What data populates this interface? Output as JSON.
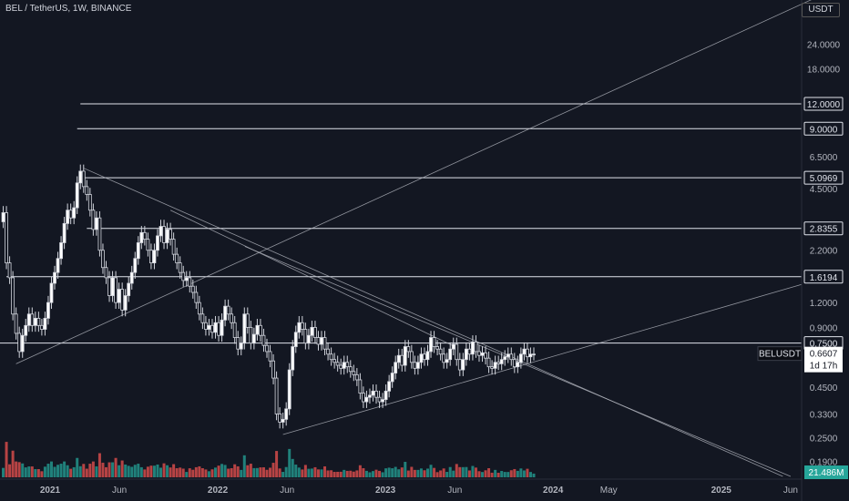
{
  "header": {
    "symbol_line": "BEL / TetherUS, 1W, BINANCE",
    "unit": "USDT"
  },
  "colors": {
    "up": "#ffffff",
    "down": "#d1d4dc",
    "vol_up": "#26a69a",
    "vol_down": "#ef5350",
    "bg": "#131722",
    "last": "#ffffff"
  },
  "chart_data": {
    "type": "candlestick",
    "y_scale": "log",
    "ylim": [
      0.155,
      40
    ],
    "xlim": [
      "2020-09-14",
      "2025-06-25"
    ],
    "y_ticks": [
      "24.0000",
      "18.0000",
      "12.0000",
      "9.0000",
      "6.5000",
      "4.5000",
      "2.2000",
      "1.2000",
      "0.9000",
      "0.4500",
      "0.3300",
      "0.2500",
      "0.1900"
    ],
    "x_ticks": [
      "2021",
      "Jun",
      "2022",
      "Jun",
      "2023",
      "Jun",
      "2024",
      "May",
      "2025",
      "Jun"
    ],
    "x_tick_dates": [
      "2021-01-01",
      "2021-06-01",
      "2022-01-01",
      "2022-06-01",
      "2023-01-01",
      "2023-06-01",
      "2024-01-01",
      "2024-05-01",
      "2025-01-01",
      "2025-06-01"
    ],
    "horizontal_levels": [
      {
        "price": 12.0,
        "label": "12.0000",
        "from": "2021-03-08"
      },
      {
        "price": 9.0,
        "label": "9.0000",
        "from": "2021-03-01"
      },
      {
        "price": 5.0969,
        "label": "5.0969",
        "from": "2021-03-15"
      },
      {
        "price": 2.8355,
        "label": "2.8355",
        "from": "2021-03-22"
      },
      {
        "price": 1.6194,
        "label": "1.6194",
        "from": "2020-09-28"
      },
      {
        "price": 0.75,
        "label": "0.7500",
        "from": "2020-09-14"
      }
    ],
    "trendlines": [
      {
        "from": [
          "2020-10-19",
          0.59
        ],
        "to": [
          "2025-09-01",
          45
        ]
      },
      {
        "from": [
          "2021-03-15",
          5.7
        ],
        "to": [
          "2025-05-15",
          0.16
        ]
      },
      {
        "from": [
          "2022-03-01",
          2.3
        ],
        "to": [
          "2025-06-01",
          0.16
        ]
      },
      {
        "from": [
          "2022-05-23",
          0.26
        ],
        "to": [
          "2025-06-25",
          1.48
        ]
      },
      {
        "from": [
          "2021-09-20",
          3.5
        ],
        "to": [
          "2023-06-01",
          0.72
        ]
      }
    ],
    "last_price": {
      "label": "BELUSDT",
      "value": "0.6607",
      "countdown": "1d 17h"
    },
    "volume_label": "21.486M",
    "weekly_close": [
      [
        "2020-09-21",
        3.4
      ],
      [
        "2020-09-28",
        1.9
      ],
      [
        "2020-10-05",
        1.6
      ],
      [
        "2020-10-12",
        1.05
      ],
      [
        "2020-10-19",
        0.84
      ],
      [
        "2020-10-26",
        0.68
      ],
      [
        "2020-11-02",
        0.82
      ],
      [
        "2020-11-09",
        0.92
      ],
      [
        "2020-11-16",
        1.05
      ],
      [
        "2020-11-23",
        0.92
      ],
      [
        "2020-11-30",
        1.0
      ],
      [
        "2020-12-07",
        0.92
      ],
      [
        "2020-12-14",
        0.88
      ],
      [
        "2020-12-21",
        1.0
      ],
      [
        "2020-12-28",
        1.2
      ],
      [
        "2021-01-04",
        1.5
      ],
      [
        "2021-01-11",
        1.7
      ],
      [
        "2021-01-18",
        2.0
      ],
      [
        "2021-01-25",
        2.4
      ],
      [
        "2021-02-01",
        3.0
      ],
      [
        "2021-02-08",
        3.5
      ],
      [
        "2021-02-15",
        3.2
      ],
      [
        "2021-02-22",
        3.6
      ],
      [
        "2021-03-01",
        4.8
      ],
      [
        "2021-03-08",
        5.5
      ],
      [
        "2021-03-15",
        4.6
      ],
      [
        "2021-03-22",
        4.2
      ],
      [
        "2021-03-29",
        3.5
      ],
      [
        "2021-04-05",
        2.8
      ],
      [
        "2021-04-12",
        3.2
      ],
      [
        "2021-04-19",
        2.2
      ],
      [
        "2021-04-26",
        1.8
      ],
      [
        "2021-05-03",
        1.6
      ],
      [
        "2021-05-10",
        1.3
      ],
      [
        "2021-05-17",
        1.6
      ],
      [
        "2021-05-24",
        1.2
      ],
      [
        "2021-05-31",
        1.4
      ],
      [
        "2021-06-07",
        1.1
      ],
      [
        "2021-06-14",
        1.3
      ],
      [
        "2021-06-21",
        1.5
      ],
      [
        "2021-06-28",
        1.7
      ],
      [
        "2021-07-05",
        2.0
      ],
      [
        "2021-07-12",
        2.4
      ],
      [
        "2021-07-19",
        2.7
      ],
      [
        "2021-07-26",
        2.5
      ],
      [
        "2021-08-02",
        2.2
      ],
      [
        "2021-08-09",
        1.9
      ],
      [
        "2021-08-16",
        2.2
      ],
      [
        "2021-08-23",
        2.6
      ],
      [
        "2021-08-30",
        2.9
      ],
      [
        "2021-09-06",
        2.4
      ],
      [
        "2021-09-13",
        2.8
      ],
      [
        "2021-09-20",
        2.5
      ],
      [
        "2021-09-27",
        2.1
      ],
      [
        "2021-10-04",
        1.9
      ],
      [
        "2021-10-11",
        1.7
      ],
      [
        "2021-10-18",
        1.55
      ],
      [
        "2021-10-25",
        1.6
      ],
      [
        "2021-11-01",
        1.45
      ],
      [
        "2021-11-08",
        1.35
      ],
      [
        "2021-11-15",
        1.2
      ],
      [
        "2021-11-22",
        1.05
      ],
      [
        "2021-11-29",
        0.95
      ],
      [
        "2021-12-06",
        0.88
      ],
      [
        "2021-12-13",
        0.92
      ],
      [
        "2021-12-20",
        0.85
      ],
      [
        "2021-12-27",
        0.95
      ],
      [
        "2022-01-03",
        0.82
      ],
      [
        "2022-01-10",
        0.98
      ],
      [
        "2022-01-17",
        1.15
      ],
      [
        "2022-01-24",
        1.05
      ],
      [
        "2022-01-31",
        0.95
      ],
      [
        "2022-02-07",
        0.8
      ],
      [
        "2022-02-14",
        0.7
      ],
      [
        "2022-02-21",
        0.75
      ],
      [
        "2022-02-28",
        1.05
      ],
      [
        "2022-03-07",
        0.9
      ],
      [
        "2022-03-14",
        0.75
      ],
      [
        "2022-03-21",
        0.83
      ],
      [
        "2022-03-28",
        0.92
      ],
      [
        "2022-04-04",
        0.82
      ],
      [
        "2022-04-11",
        0.73
      ],
      [
        "2022-04-18",
        0.68
      ],
      [
        "2022-04-25",
        0.61
      ],
      [
        "2022-05-02",
        0.5
      ],
      [
        "2022-05-09",
        0.33
      ],
      [
        "2022-05-16",
        0.3
      ],
      [
        "2022-05-23",
        0.31
      ],
      [
        "2022-05-30",
        0.35
      ],
      [
        "2022-06-06",
        0.55
      ],
      [
        "2022-06-13",
        0.72
      ],
      [
        "2022-06-20",
        0.85
      ],
      [
        "2022-06-27",
        0.95
      ],
      [
        "2022-07-04",
        0.88
      ],
      [
        "2022-07-11",
        0.75
      ],
      [
        "2022-07-18",
        0.82
      ],
      [
        "2022-07-25",
        0.9
      ],
      [
        "2022-08-01",
        0.8
      ],
      [
        "2022-08-08",
        0.74
      ],
      [
        "2022-08-15",
        0.8
      ],
      [
        "2022-08-22",
        0.7
      ],
      [
        "2022-08-29",
        0.66
      ],
      [
        "2022-09-05",
        0.62
      ],
      [
        "2022-09-12",
        0.6
      ],
      [
        "2022-09-19",
        0.58
      ],
      [
        "2022-09-26",
        0.56
      ],
      [
        "2022-10-03",
        0.6
      ],
      [
        "2022-10-10",
        0.57
      ],
      [
        "2022-10-17",
        0.54
      ],
      [
        "2022-10-24",
        0.52
      ],
      [
        "2022-10-31",
        0.49
      ],
      [
        "2022-11-07",
        0.42
      ],
      [
        "2022-11-14",
        0.38
      ],
      [
        "2022-11-21",
        0.4
      ],
      [
        "2022-11-28",
        0.41
      ],
      [
        "2022-12-05",
        0.43
      ],
      [
        "2022-12-12",
        0.4
      ],
      [
        "2022-12-19",
        0.38
      ],
      [
        "2022-12-26",
        0.39
      ],
      [
        "2023-01-02",
        0.43
      ],
      [
        "2023-01-09",
        0.48
      ],
      [
        "2023-01-16",
        0.53
      ],
      [
        "2023-01-23",
        0.6
      ],
      [
        "2023-01-30",
        0.65
      ],
      [
        "2023-02-06",
        0.58
      ],
      [
        "2023-02-13",
        0.72
      ],
      [
        "2023-02-20",
        0.68
      ],
      [
        "2023-02-27",
        0.6
      ],
      [
        "2023-03-06",
        0.56
      ],
      [
        "2023-03-13",
        0.6
      ],
      [
        "2023-03-20",
        0.66
      ],
      [
        "2023-03-27",
        0.62
      ],
      [
        "2023-04-03",
        0.68
      ],
      [
        "2023-04-10",
        0.8
      ],
      [
        "2023-04-17",
        0.72
      ],
      [
        "2023-04-24",
        0.7
      ],
      [
        "2023-05-01",
        0.66
      ],
      [
        "2023-05-08",
        0.6
      ],
      [
        "2023-05-15",
        0.62
      ],
      [
        "2023-05-22",
        0.7
      ],
      [
        "2023-05-29",
        0.74
      ],
      [
        "2023-06-05",
        0.62
      ],
      [
        "2023-06-12",
        0.55
      ],
      [
        "2023-06-19",
        0.62
      ],
      [
        "2023-06-26",
        0.7
      ],
      [
        "2023-07-03",
        0.66
      ],
      [
        "2023-07-10",
        0.76
      ],
      [
        "2023-07-17",
        0.68
      ],
      [
        "2023-07-24",
        0.65
      ],
      [
        "2023-07-31",
        0.67
      ],
      [
        "2023-08-07",
        0.63
      ],
      [
        "2023-08-14",
        0.57
      ],
      [
        "2023-08-21",
        0.56
      ],
      [
        "2023-08-28",
        0.6
      ],
      [
        "2023-09-04",
        0.59
      ],
      [
        "2023-09-11",
        0.62
      ],
      [
        "2023-09-18",
        0.64
      ],
      [
        "2023-09-25",
        0.66
      ],
      [
        "2023-10-02",
        0.62
      ],
      [
        "2023-10-09",
        0.57
      ],
      [
        "2023-10-16",
        0.6
      ],
      [
        "2023-10-23",
        0.66
      ],
      [
        "2023-10-30",
        0.7
      ],
      [
        "2023-11-06",
        0.64
      ],
      [
        "2023-11-13",
        0.66
      ],
      [
        "2023-11-20",
        0.6607
      ]
    ]
  }
}
